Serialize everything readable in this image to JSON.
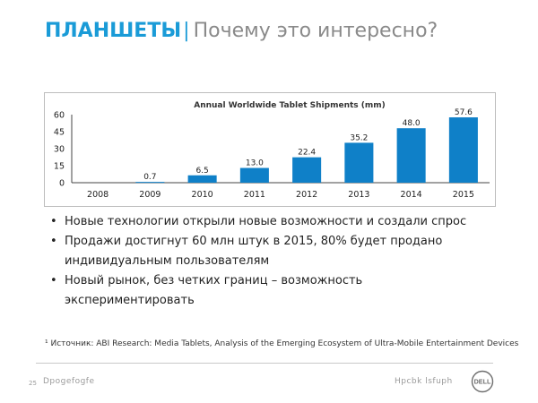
{
  "slide": {
    "title_main": "ПЛАНШЕТЫ",
    "title_sep": "|",
    "title_sub": "Почему это интересно?"
  },
  "chart_data": {
    "type": "bar",
    "title": "Annual Worldwide Tablet Shipments (mm)",
    "categories": [
      "2008",
      "2009",
      "2010",
      "2011",
      "2012",
      "2013",
      "2014",
      "2015"
    ],
    "values": [
      0,
      0.7,
      6.5,
      13.0,
      22.4,
      35.2,
      48.0,
      57.6
    ],
    "value_labels": [
      "",
      "0.7",
      "6.5",
      "13.0",
      "22.4",
      "35.2",
      "48.0",
      "57.6"
    ],
    "xlabel": "",
    "ylabel": "",
    "ylim": [
      0,
      60
    ],
    "yticks": [
      "0",
      "15",
      "30",
      "45",
      "60"
    ],
    "grid": false,
    "bar_color": "#0f80c8"
  },
  "bullets": [
    "Новые технологии открыли новые возможности и создали спрос",
    "Продажи достигнут 60 млн штук в 2015, 80% будет продано индивидуальным пользователям",
    "Новый рынок, без четких границ – возможность экспериментировать"
  ],
  "footnote": "¹ Источник: ABI Research: Media Tablets, Analysis of the Emerging Ecosystem of Ultra-Mobile Entertainment Devices",
  "footer": {
    "page_number": "25",
    "left_text": "Dpogefogfe",
    "right_text": "Hpcbk lsfuph"
  },
  "logo": {
    "text": "DELL"
  }
}
